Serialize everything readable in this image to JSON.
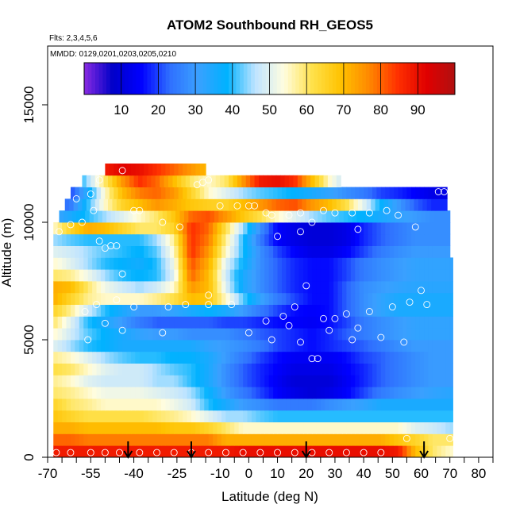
{
  "chart_data": {
    "type": "heatmap",
    "title": "ATOM2 Southbound RH_GEOS5",
    "flights_label": "Flts: 2,3,4,5,6",
    "dates_label": "MMDD: 0129,0201,0203,0205,0210",
    "xlabel": "Latitude (deg N)",
    "ylabel": "Altitude (m)",
    "xlim": [
      -70,
      85
    ],
    "ylim": [
      0,
      17500
    ],
    "x_ticks": [
      -70,
      -55,
      -40,
      -25,
      -10,
      0,
      10,
      20,
      30,
      40,
      50,
      60,
      70,
      80
    ],
    "x_tick_labels": [
      "-70",
      "-55",
      "-40",
      "-25",
      "-10",
      "0",
      "10",
      "20",
      "30",
      "40",
      "50",
      "60",
      "70",
      "80"
    ],
    "y_ticks": [
      0,
      5000,
      10000,
      15000
    ],
    "y_tick_labels": [
      "0",
      "5000",
      "10000",
      "15000"
    ],
    "colorbar": {
      "min": 0,
      "max": 100,
      "ticks": [
        10,
        20,
        30,
        40,
        50,
        60,
        70,
        80,
        90
      ],
      "tick_labels": [
        "10",
        "20",
        "30",
        "40",
        "50",
        "60",
        "70",
        "80",
        "90"
      ],
      "colors": [
        "#8a2be2",
        "#0000c8",
        "#0000ff",
        "#2f6fff",
        "#3aa0ff",
        "#00b2ff",
        "#bfe4ff",
        "#fffde0",
        "#ffe14a",
        "#ffc200",
        "#ff8800",
        "#ff3000",
        "#e00000",
        "#b01010"
      ]
    },
    "lat_grid": [
      -68,
      -62,
      -56,
      -50,
      -44,
      -38,
      -32,
      -26,
      -20,
      -14,
      -8,
      -2,
      4,
      10,
      16,
      22,
      28,
      34,
      40,
      46,
      52,
      58,
      64,
      70
    ],
    "alt_bands": [
      {
        "z0": 0,
        "z1": 500,
        "x0": -68,
        "x1": 71,
        "v": [
          88,
          88,
          88,
          88,
          88,
          88,
          88,
          88,
          88,
          88,
          88,
          90,
          90,
          90,
          90,
          90,
          90,
          90,
          90,
          90,
          88,
          70,
          60,
          55
        ]
      },
      {
        "z0": 500,
        "z1": 1000,
        "x0": -68,
        "x1": 71,
        "v": [
          80,
          80,
          78,
          78,
          78,
          78,
          78,
          78,
          78,
          78,
          72,
          72,
          72,
          72,
          72,
          72,
          72,
          72,
          72,
          72,
          68,
          65,
          60,
          60
        ]
      },
      {
        "z0": 1000,
        "z1": 1500,
        "x0": -68,
        "x1": 71,
        "v": [
          72,
          72,
          70,
          70,
          70,
          70,
          70,
          68,
          68,
          65,
          60,
          55,
          55,
          55,
          55,
          55,
          55,
          55,
          55,
          55,
          55,
          50,
          48,
          45
        ]
      },
      {
        "z0": 1500,
        "z1": 2000,
        "x0": -68,
        "x1": 71,
        "v": [
          68,
          65,
          62,
          62,
          62,
          62,
          60,
          58,
          55,
          50,
          45,
          45,
          42,
          40,
          40,
          40,
          40,
          40,
          40,
          40,
          40,
          40,
          40,
          40
        ]
      },
      {
        "z0": 2000,
        "z1": 2500,
        "x0": -68,
        "x1": 71,
        "v": [
          65,
          60,
          58,
          55,
          55,
          55,
          55,
          52,
          48,
          40,
          35,
          30,
          28,
          25,
          25,
          25,
          28,
          30,
          32,
          35,
          35,
          35,
          35,
          35
        ]
      },
      {
        "z0": 2500,
        "z1": 3000,
        "x0": -68,
        "x1": 71,
        "v": [
          60,
          58,
          55,
          52,
          52,
          52,
          50,
          48,
          45,
          38,
          30,
          25,
          20,
          15,
          12,
          10,
          12,
          15,
          20,
          25,
          28,
          30,
          32,
          33
        ]
      },
      {
        "z0": 3000,
        "z1": 3500,
        "x0": -68,
        "x1": 71,
        "v": [
          58,
          55,
          50,
          48,
          48,
          48,
          45,
          45,
          40,
          35,
          28,
          22,
          18,
          14,
          10,
          10,
          10,
          14,
          18,
          22,
          25,
          28,
          30,
          30
        ]
      },
      {
        "z0": 3500,
        "z1": 4000,
        "x0": -68,
        "x1": 71,
        "v": [
          62,
          60,
          55,
          50,
          48,
          48,
          45,
          42,
          40,
          35,
          28,
          22,
          18,
          15,
          12,
          12,
          12,
          15,
          18,
          22,
          25,
          28,
          30,
          30
        ]
      },
      {
        "z0": 4000,
        "z1": 4500,
        "x0": -68,
        "x1": 71,
        "v": [
          58,
          55,
          50,
          45,
          42,
          40,
          40,
          38,
          38,
          35,
          30,
          25,
          20,
          16,
          14,
          14,
          14,
          16,
          20,
          22,
          25,
          28,
          30,
          30
        ]
      },
      {
        "z0": 4500,
        "z1": 5000,
        "x0": -68,
        "x1": 71,
        "v": [
          50,
          45,
          40,
          38,
          35,
          35,
          35,
          35,
          35,
          32,
          30,
          28,
          25,
          20,
          18,
          16,
          18,
          20,
          22,
          25,
          28,
          30,
          30,
          30
        ]
      },
      {
        "z0": 5000,
        "z1": 5500,
        "x0": -68,
        "x1": 71,
        "v": [
          55,
          48,
          42,
          38,
          35,
          32,
          30,
          30,
          28,
          28,
          28,
          25,
          22,
          20,
          18,
          16,
          18,
          22,
          25,
          28,
          30,
          32,
          32,
          32
        ]
      },
      {
        "z0": 5500,
        "z1": 6000,
        "x0": -68,
        "x1": 71,
        "v": [
          60,
          50,
          40,
          35,
          30,
          25,
          22,
          22,
          22,
          22,
          20,
          20,
          18,
          16,
          15,
          14,
          16,
          20,
          25,
          28,
          30,
          32,
          32,
          32
        ]
      },
      {
        "z0": 6000,
        "z1": 6500,
        "x0": -68,
        "x1": 71,
        "v": [
          65,
          58,
          48,
          40,
          35,
          30,
          30,
          32,
          35,
          38,
          35,
          30,
          25,
          20,
          16,
          15,
          16,
          22,
          28,
          32,
          35,
          35,
          35,
          35
        ]
      },
      {
        "z0": 6500,
        "z1": 7000,
        "x0": -68,
        "x1": 71,
        "v": [
          72,
          65,
          58,
          55,
          55,
          55,
          58,
          62,
          70,
          68,
          55,
          42,
          32,
          25,
          20,
          16,
          16,
          22,
          28,
          32,
          35,
          35,
          35,
          35
        ]
      },
      {
        "z0": 7000,
        "z1": 7500,
        "x0": -68,
        "x1": 71,
        "v": [
          72,
          70,
          60,
          52,
          48,
          45,
          48,
          55,
          75,
          70,
          50,
          35,
          28,
          22,
          18,
          16,
          16,
          22,
          28,
          30,
          32,
          33,
          33,
          33
        ]
      },
      {
        "z0": 7500,
        "z1": 8000,
        "x0": -68,
        "x1": 71,
        "v": [
          60,
          58,
          52,
          45,
          40,
          38,
          40,
          50,
          80,
          70,
          48,
          35,
          28,
          22,
          18,
          16,
          16,
          20,
          25,
          28,
          30,
          32,
          32,
          32
        ]
      },
      {
        "z0": 8000,
        "z1": 8500,
        "x0": -68,
        "x1": 71,
        "v": [
          55,
          50,
          45,
          40,
          38,
          36,
          40,
          52,
          82,
          72,
          50,
          38,
          28,
          22,
          18,
          16,
          16,
          20,
          25,
          28,
          30,
          32,
          32,
          32
        ]
      },
      {
        "z0": 8500,
        "z1": 9000,
        "x0": -68,
        "x1": 70,
        "v": [
          50,
          48,
          45,
          42,
          40,
          38,
          42,
          55,
          85,
          75,
          55,
          40,
          28,
          20,
          15,
          12,
          12,
          15,
          20,
          25,
          28,
          30,
          30,
          30
        ]
      },
      {
        "z0": 9000,
        "z1": 9500,
        "x0": -68,
        "x1": 70,
        "v": [
          45,
          42,
          40,
          40,
          40,
          40,
          45,
          58,
          85,
          78,
          58,
          40,
          25,
          15,
          12,
          10,
          10,
          12,
          18,
          22,
          25,
          28,
          28,
          28
        ]
      },
      {
        "z0": 9500,
        "z1": 10000,
        "x0": -68,
        "x1": 70,
        "v": [
          55,
          65,
          72,
          70,
          65,
          60,
          60,
          65,
          85,
          80,
          62,
          45,
          28,
          15,
          12,
          10,
          10,
          12,
          18,
          22,
          25,
          28,
          28,
          28
        ]
      },
      {
        "z0": 10000,
        "z1": 10500,
        "x0": -66,
        "x1": 70,
        "v": [
          30,
          35,
          40,
          45,
          50,
          55,
          60,
          68,
          80,
          82,
          75,
          68,
          62,
          55,
          50,
          45,
          42,
          40,
          38,
          35,
          32,
          30,
          28,
          28
        ]
      },
      {
        "z0": 10500,
        "z1": 11000,
        "x0": -64,
        "x1": 69,
        "v": [
          20,
          25,
          40,
          55,
          65,
          70,
          75,
          72,
          68,
          66,
          65,
          70,
          75,
          80,
          82,
          75,
          70,
          62,
          50,
          38,
          30,
          22,
          18,
          18
        ]
      },
      {
        "z0": 11000,
        "z1": 11500,
        "x0": -62,
        "x1": 69,
        "v": [
          15,
          20,
          35,
          55,
          70,
          78,
          80,
          75,
          65,
          55,
          50,
          45,
          42,
          40,
          38,
          35,
          32,
          28,
          25,
          20,
          18,
          15,
          12,
          12
        ]
      },
      {
        "z0": 11500,
        "z1": 12000,
        "x0": -58,
        "x1": 32,
        "v": [
          25,
          30,
          45,
          60,
          75,
          85,
          80,
          70,
          60,
          55,
          60,
          75,
          88,
          90,
          85,
          70,
          55,
          45,
          40,
          40,
          40,
          40,
          40,
          40
        ]
      },
      {
        "z0": 12000,
        "z1": 12500,
        "x0": -50,
        "x1": -15,
        "v": [
          40,
          55,
          75,
          88,
          92,
          90,
          85,
          80,
          75,
          70,
          70,
          70,
          70,
          70,
          70,
          70,
          70,
          70,
          70,
          70,
          70,
          70,
          70,
          70
        ]
      }
    ],
    "obs_points": [
      [
        -67,
        200
      ],
      [
        -62,
        200
      ],
      [
        -55,
        200
      ],
      [
        -50,
        200
      ],
      [
        -45,
        200
      ],
      [
        -38,
        200
      ],
      [
        -32,
        200
      ],
      [
        -26,
        200
      ],
      [
        -20,
        200
      ],
      [
        -14,
        200
      ],
      [
        -8,
        200
      ],
      [
        -2,
        200
      ],
      [
        4,
        200
      ],
      [
        10,
        200
      ],
      [
        16,
        200
      ],
      [
        22,
        200
      ],
      [
        28,
        200
      ],
      [
        34,
        200
      ],
      [
        40,
        200
      ],
      [
        46,
        200
      ],
      [
        55,
        800
      ],
      [
        70,
        800
      ],
      [
        -56,
        5000
      ],
      [
        -50,
        5700
      ],
      [
        -46,
        6700
      ],
      [
        -44,
        5400
      ],
      [
        -40,
        6400
      ],
      [
        -30,
        5300
      ],
      [
        -28,
        6400
      ],
      [
        -22,
        6500
      ],
      [
        -14,
        6900
      ],
      [
        -14,
        6500
      ],
      [
        -6,
        6500
      ],
      [
        0,
        5300
      ],
      [
        6,
        5800
      ],
      [
        8,
        5000
      ],
      [
        12,
        6000
      ],
      [
        14,
        5600
      ],
      [
        16,
        6400
      ],
      [
        18,
        4900
      ],
      [
        20,
        7300
      ],
      [
        22,
        4200
      ],
      [
        24,
        4200
      ],
      [
        26,
        5900
      ],
      [
        28,
        5400
      ],
      [
        30,
        5900
      ],
      [
        34,
        6100
      ],
      [
        36,
        5000
      ],
      [
        38,
        5500
      ],
      [
        42,
        6200
      ],
      [
        46,
        5100
      ],
      [
        50,
        6400
      ],
      [
        54,
        4900
      ],
      [
        56,
        6600
      ],
      [
        60,
        7100
      ],
      [
        62,
        6500
      ],
      [
        -66,
        9600
      ],
      [
        -62,
        9900
      ],
      [
        -58,
        10000
      ],
      [
        -54,
        10500
      ],
      [
        -52,
        9200
      ],
      [
        -50,
        8900
      ],
      [
        -48,
        9000
      ],
      [
        -46,
        9000
      ],
      [
        -44,
        7800
      ],
      [
        -40,
        10500
      ],
      [
        -38,
        10500
      ],
      [
        -30,
        10000
      ],
      [
        -24,
        9800
      ],
      [
        -18,
        11600
      ],
      [
        -16,
        11700
      ],
      [
        -14,
        11800
      ],
      [
        0,
        10700
      ],
      [
        2,
        10700
      ],
      [
        6,
        10400
      ],
      [
        8,
        10300
      ],
      [
        10,
        9400
      ],
      [
        14,
        10300
      ],
      [
        18,
        9600
      ],
      [
        22,
        10000
      ],
      [
        26,
        10500
      ],
      [
        30,
        10400
      ],
      [
        36,
        10400
      ],
      [
        38,
        9700
      ],
      [
        42,
        10400
      ],
      [
        48,
        10500
      ],
      [
        52,
        10300
      ],
      [
        58,
        9800
      ],
      [
        66,
        11300
      ],
      [
        68,
        11300
      ],
      [
        -52,
        11800
      ],
      [
        -44,
        12200
      ],
      [
        -10,
        10700
      ],
      [
        -4,
        10700
      ],
      [
        18,
        10400
      ],
      [
        -60,
        11000
      ],
      [
        -55,
        11200
      ],
      [
        -57,
        6200
      ],
      [
        -53,
        6500
      ]
    ],
    "flight_markers_x": [
      -42,
      -20,
      20,
      61
    ]
  }
}
